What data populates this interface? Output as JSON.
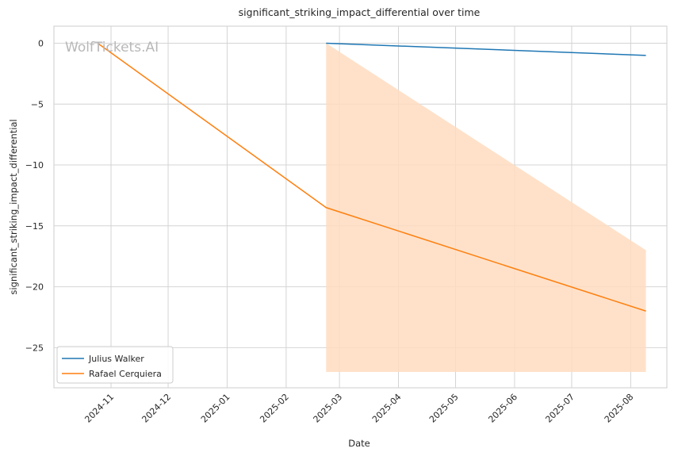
{
  "chart_data": {
    "type": "line",
    "title": "significant_striking_impact_differential over time",
    "xlabel": "Date",
    "ylabel": "significant_striking_impact_differential",
    "watermark": "WolfTickets.AI",
    "xlim": [
      "2024-10-02",
      "2025-08-20"
    ],
    "ylim": [
      -28.3,
      1.4
    ],
    "x_ticks": [
      "2024-11",
      "2024-12",
      "2025-01",
      "2025-02",
      "2025-03",
      "2025-04",
      "2025-05",
      "2025-06",
      "2025-07",
      "2025-08"
    ],
    "y_ticks": [
      0,
      -5,
      -10,
      -15,
      -20,
      -25
    ],
    "y_tick_labels": [
      "0",
      "−5",
      "−10",
      "−15",
      "−20",
      "−25"
    ],
    "grid": true,
    "legend_position": "lower-left",
    "series": [
      {
        "name": "Julius Walker",
        "color": "#1f77b4",
        "points": [
          {
            "x": "2025-02-22",
            "y": 0
          },
          {
            "x": "2025-08-09",
            "y": -1
          }
        ]
      },
      {
        "name": "Rafael Cerquiera",
        "color": "#ff7f0e",
        "points": [
          {
            "x": "2024-10-25",
            "y": 0
          },
          {
            "x": "2025-02-22",
            "y": -13.5
          },
          {
            "x": "2025-08-09",
            "y": -22
          }
        ],
        "band": [
          {
            "x": "2025-02-22",
            "low": -27,
            "high": 0
          },
          {
            "x": "2025-08-09",
            "low": -27,
            "high": -17
          }
        ],
        "band_color": "#ffdcc0"
      }
    ]
  }
}
